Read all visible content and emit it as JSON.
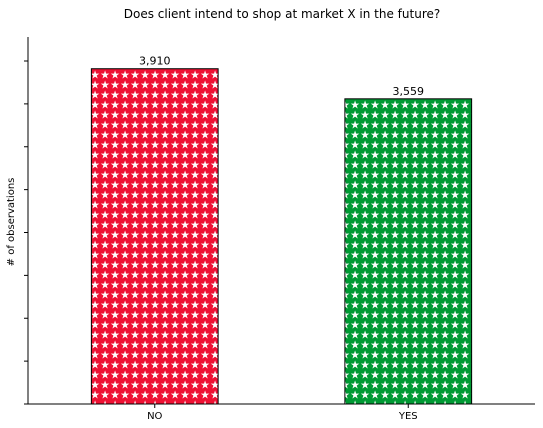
{
  "chart_data": {
    "type": "bar",
    "title": "Does client intend to shop at market X in the future?",
    "ylabel": "# of observations",
    "xlabel": "",
    "categories": [
      "NO",
      "YES"
    ],
    "values": [
      3910,
      3559
    ],
    "value_labels": [
      "3,910",
      "3,559"
    ],
    "bar_colors": [
      "#ee1133",
      "#009933"
    ],
    "hatch": "white-stars",
    "ylim": [
      0,
      4280
    ],
    "y_tick_values": [
      0,
      500,
      1000,
      1500,
      2000,
      2500,
      3000,
      3500,
      4000
    ],
    "y_tick_labels_shown": false,
    "grid": false
  }
}
